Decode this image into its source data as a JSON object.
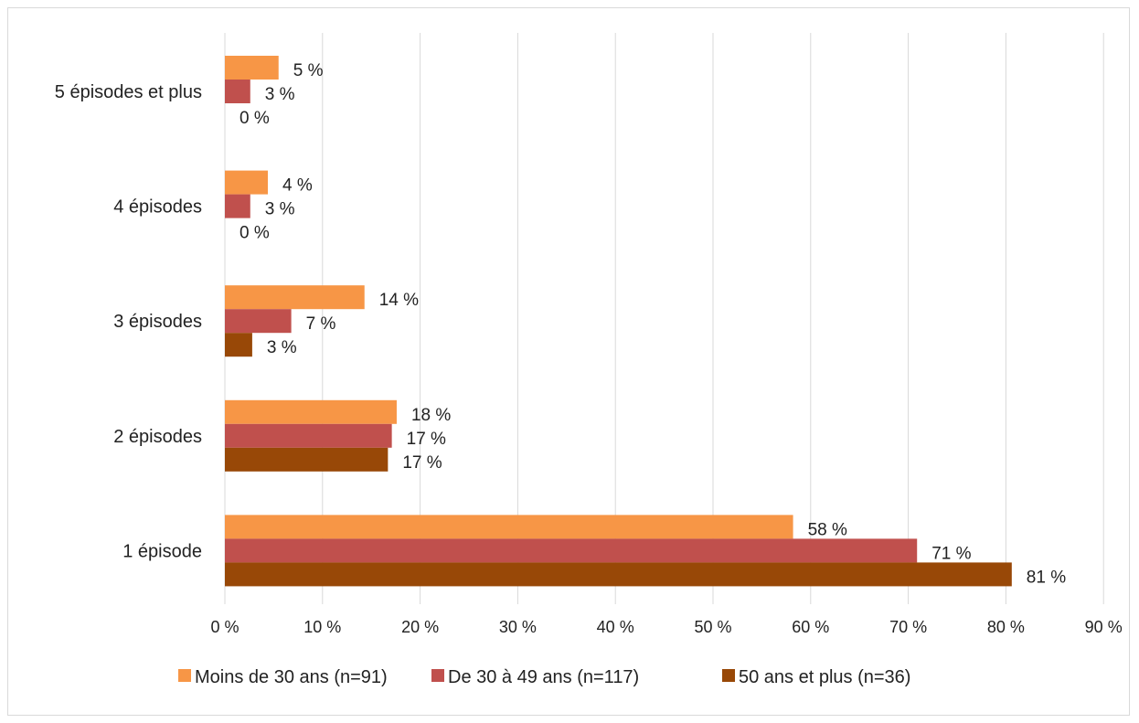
{
  "chart_data": {
    "type": "bar",
    "orientation": "horizontal",
    "title": "",
    "xlabel": "",
    "ylabel": "",
    "categories": [
      "5 épisodes et plus",
      "4 épisodes",
      "3 épisodes",
      "2 épisodes",
      "1 épisode"
    ],
    "series": [
      {
        "name": "Moins de 30 ans (n=91)",
        "color": "#f79646",
        "values": [
          5.5,
          4.4,
          14.3,
          17.6,
          58.2
        ],
        "labels": [
          "5 %",
          "4 %",
          "14 %",
          "18 %",
          "58 %"
        ]
      },
      {
        "name": "De 30 à 49 ans (n=117)",
        "color": "#c0504d",
        "values": [
          2.6,
          2.6,
          6.8,
          17.1,
          70.9
        ],
        "labels": [
          "3 %",
          "3 %",
          "7 %",
          "17 %",
          "71 %"
        ]
      },
      {
        "name": "50 ans et plus (n=36)",
        "color": "#984807",
        "values": [
          0,
          0,
          2.8,
          16.7,
          80.6
        ],
        "labels": [
          "0 %",
          "0 %",
          "3 %",
          "17 %",
          "81 %"
        ]
      }
    ],
    "xlim": [
      0,
      90
    ],
    "xticks": [
      0,
      10,
      20,
      30,
      40,
      50,
      60,
      70,
      80,
      90
    ],
    "xtick_labels": [
      "0 %",
      "10 %",
      "20 %",
      "30 %",
      "40 %",
      "50 %",
      "60 %",
      "70 %",
      "80 %",
      "90 %"
    ],
    "grid": "vertical",
    "legend_position": "bottom"
  }
}
